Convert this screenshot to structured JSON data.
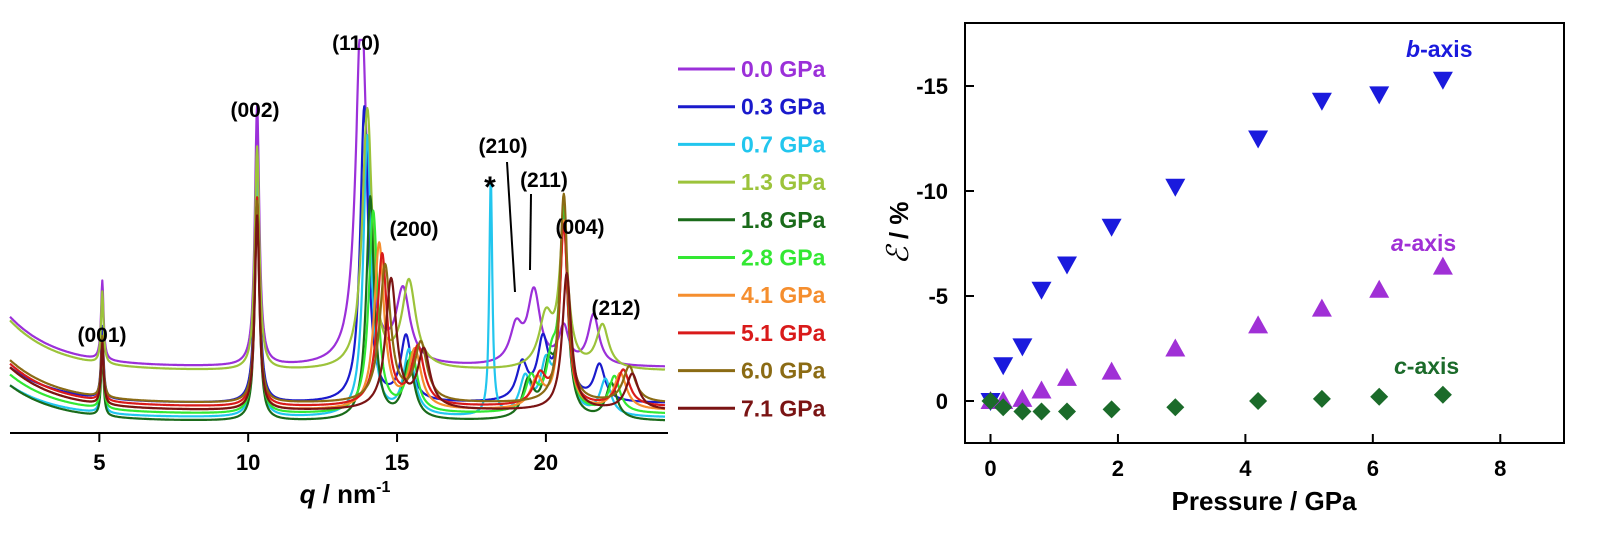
{
  "chart_data": [
    {
      "type": "line",
      "xlabel": {
        "var": "q",
        "rest": " / nm",
        "sup": "-1"
      },
      "xlim": [
        2,
        24
      ],
      "x_ticks": [
        5,
        10,
        15,
        20
      ],
      "x_tick_labels": [
        "5",
        "10",
        "15",
        "20"
      ],
      "y_ticks_shown": false,
      "grid": false,
      "legend_position": "right",
      "peaks": [
        {
          "label": "(001)",
          "q": 5.1
        },
        {
          "label": "(002)",
          "q": 10.3
        },
        {
          "label": "(110)",
          "q": 13.8
        },
        {
          "label": "(200)",
          "q": 15.2
        },
        {
          "label": "*",
          "q": 18.2
        },
        {
          "label": "(210)",
          "q": 19.0
        },
        {
          "label": "(211)",
          "q": 19.6
        },
        {
          "label": "(004)",
          "q": 20.6
        },
        {
          "label": "(212)",
          "q": 21.6
        }
      ],
      "series": [
        {
          "name": "0.0 GPa",
          "color": "#9B30D9",
          "baseline": 0.16,
          "bg": 0.14,
          "peaks": [
            [
              5.1,
              0.22,
              0.05
            ],
            [
              10.3,
              0.72,
              0.09
            ],
            [
              13.8,
              1.0,
              0.22
            ],
            [
              15.2,
              0.2,
              0.28
            ],
            [
              19.0,
              0.1,
              0.25
            ],
            [
              19.6,
              0.2,
              0.25
            ],
            [
              20.6,
              0.1,
              0.2
            ],
            [
              21.6,
              0.14,
              0.22
            ]
          ]
        },
        {
          "name": "0.3 GPa",
          "color": "#1A1ACC",
          "baseline": 0.06,
          "bg": 0.1,
          "peaks": [
            [
              5.1,
              0.2,
              0.05
            ],
            [
              10.3,
              0.68,
              0.09
            ],
            [
              13.9,
              0.82,
              0.16
            ],
            [
              15.3,
              0.18,
              0.22
            ],
            [
              19.2,
              0.1,
              0.22
            ],
            [
              19.9,
              0.16,
              0.22
            ],
            [
              20.6,
              0.5,
              0.15
            ],
            [
              21.8,
              0.1,
              0.22
            ]
          ]
        },
        {
          "name": "0.7 GPa",
          "color": "#22C6EE",
          "baseline": 0.02,
          "bg": 0.09,
          "peaks": [
            [
              5.1,
              0.19,
              0.05
            ],
            [
              10.3,
              0.66,
              0.09
            ],
            [
              14.0,
              0.78,
              0.16
            ],
            [
              15.4,
              0.18,
              0.22
            ],
            [
              18.15,
              0.66,
              0.06
            ],
            [
              19.3,
              0.1,
              0.22
            ],
            [
              20.0,
              0.13,
              0.22
            ],
            [
              20.6,
              0.55,
              0.15
            ],
            [
              22.0,
              0.1,
              0.22
            ]
          ]
        },
        {
          "name": "1.3 GPa",
          "color": "#9CC33B",
          "baseline": 0.15,
          "bg": 0.14,
          "peaks": [
            [
              5.1,
              0.2,
              0.05
            ],
            [
              10.3,
              0.62,
              0.09
            ],
            [
              14.0,
              0.72,
              0.2
            ],
            [
              15.4,
              0.24,
              0.28
            ],
            [
              20.0,
              0.14,
              0.28
            ],
            [
              20.6,
              0.38,
              0.18
            ],
            [
              21.9,
              0.12,
              0.25
            ]
          ]
        },
        {
          "name": "1.8 GPa",
          "color": "#1A6B1A",
          "baseline": 0.01,
          "bg": 0.1,
          "peaks": [
            [
              5.1,
              0.18,
              0.05
            ],
            [
              10.3,
              0.62,
              0.09
            ],
            [
              14.1,
              0.62,
              0.16
            ],
            [
              15.4,
              0.16,
              0.22
            ],
            [
              19.4,
              0.1,
              0.22
            ],
            [
              20.1,
              0.13,
              0.22
            ],
            [
              20.6,
              0.58,
              0.15
            ],
            [
              22.2,
              0.1,
              0.22
            ]
          ]
        },
        {
          "name": "2.8 GPa",
          "color": "#33E833",
          "baseline": 0.03,
          "bg": 0.11,
          "peaks": [
            [
              5.1,
              0.18,
              0.05
            ],
            [
              10.3,
              0.6,
              0.09
            ],
            [
              14.2,
              0.56,
              0.18
            ],
            [
              15.5,
              0.16,
              0.22
            ],
            [
              19.5,
              0.09,
              0.22
            ],
            [
              20.2,
              0.13,
              0.22
            ],
            [
              20.6,
              0.55,
              0.15
            ],
            [
              22.3,
              0.1,
              0.22
            ]
          ]
        },
        {
          "name": "4.1 GPa",
          "color": "#F58E2E",
          "baseline": 0.04,
          "bg": 0.12,
          "peaks": [
            [
              5.1,
              0.17,
              0.05
            ],
            [
              10.3,
              0.58,
              0.09
            ],
            [
              14.4,
              0.46,
              0.2
            ],
            [
              15.6,
              0.16,
              0.25
            ],
            [
              19.7,
              0.08,
              0.25
            ],
            [
              20.6,
              0.52,
              0.16
            ],
            [
              22.5,
              0.1,
              0.25
            ]
          ]
        },
        {
          "name": "5.1 GPa",
          "color": "#D91A1A",
          "baseline": 0.05,
          "bg": 0.12,
          "peaks": [
            [
              5.1,
              0.17,
              0.05
            ],
            [
              10.3,
              0.58,
              0.09
            ],
            [
              14.5,
              0.42,
              0.2
            ],
            [
              15.7,
              0.16,
              0.25
            ],
            [
              19.8,
              0.08,
              0.25
            ],
            [
              20.6,
              0.5,
              0.16
            ],
            [
              22.6,
              0.1,
              0.25
            ]
          ]
        },
        {
          "name": "6.0 GPa",
          "color": "#8B6B14",
          "baseline": 0.06,
          "bg": 0.12,
          "peaks": [
            [
              5.1,
              0.17,
              0.05
            ],
            [
              10.3,
              0.56,
              0.09
            ],
            [
              14.6,
              0.38,
              0.22
            ],
            [
              15.8,
              0.16,
              0.25
            ],
            [
              20.6,
              0.58,
              0.16
            ],
            [
              22.8,
              0.1,
              0.25
            ]
          ]
        },
        {
          "name": "7.1 GPa",
          "color": "#7A1414",
          "baseline": 0.04,
          "bg": 0.12,
          "peaks": [
            [
              5.1,
              0.17,
              0.05
            ],
            [
              10.3,
              0.54,
              0.09
            ],
            [
              14.8,
              0.36,
              0.22
            ],
            [
              15.9,
              0.16,
              0.25
            ],
            [
              20.7,
              0.38,
              0.18
            ],
            [
              22.9,
              0.1,
              0.25
            ]
          ]
        }
      ]
    },
    {
      "type": "scatter",
      "xlabel": "Pressure / GPa",
      "ylabel": {
        "symbol": "ℰ",
        "rest": " / %"
      },
      "xlim": [
        -0.4,
        9
      ],
      "ylim": [
        2,
        -18
      ],
      "y_reversed": true,
      "x_ticks": [
        0,
        2,
        4,
        6,
        8
      ],
      "x_tick_labels": [
        "0",
        "2",
        "4",
        "6",
        "8"
      ],
      "y_ticks": [
        0,
        -5,
        -10,
        -15
      ],
      "y_tick_labels": [
        "0",
        "-5",
        "-10",
        "-15"
      ],
      "grid": false,
      "series": [
        {
          "name": "b-axis",
          "label_italic": "b",
          "label_rest": "-axis",
          "color": "#1A1ADD",
          "marker": "triangle-down",
          "x": [
            0.0,
            0.2,
            0.5,
            0.8,
            1.2,
            1.9,
            2.9,
            4.2,
            5.2,
            6.1,
            7.1
          ],
          "y": [
            0.0,
            -1.7,
            -2.6,
            -5.3,
            -6.5,
            -8.3,
            -10.2,
            -12.5,
            -14.3,
            -14.6,
            -15.3
          ]
        },
        {
          "name": "a-axis",
          "label_italic": "a",
          "label_rest": "-axis",
          "color": "#A030D6",
          "marker": "triangle-up",
          "x": [
            0.0,
            0.2,
            0.5,
            0.8,
            1.2,
            1.9,
            2.9,
            4.2,
            5.2,
            6.1,
            7.1
          ],
          "y": [
            0.0,
            0.0,
            -0.1,
            -0.5,
            -1.1,
            -1.4,
            -2.5,
            -3.6,
            -4.4,
            -5.3,
            -6.4
          ]
        },
        {
          "name": "c-axis",
          "label_italic": "c",
          "label_rest": "-axis",
          "color": "#1B6B2A",
          "marker": "diamond",
          "x": [
            0.0,
            0.2,
            0.5,
            0.8,
            1.2,
            1.9,
            2.9,
            4.2,
            5.2,
            6.1,
            7.1
          ],
          "y": [
            0.0,
            0.3,
            0.5,
            0.5,
            0.5,
            0.4,
            0.3,
            0.0,
            -0.1,
            -0.2,
            -0.3
          ]
        }
      ]
    }
  ]
}
